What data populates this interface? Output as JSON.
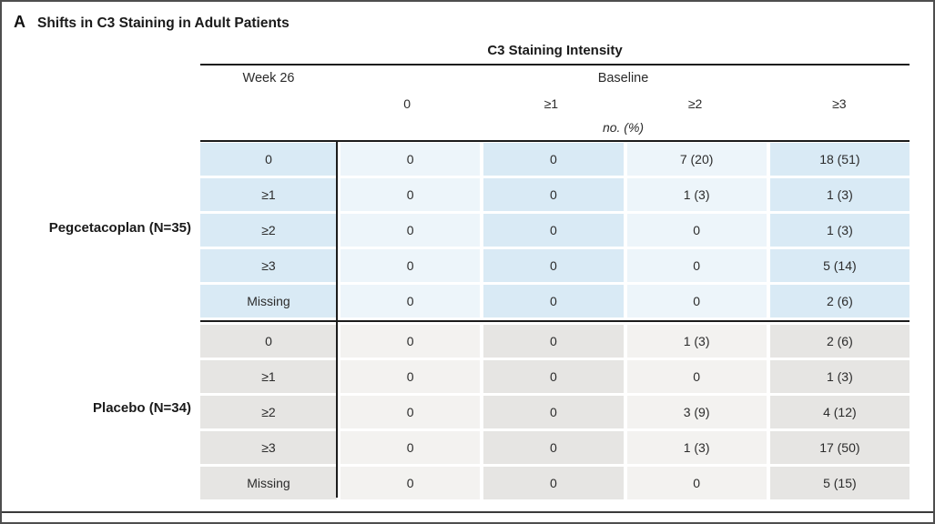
{
  "panel": {
    "letter": "A",
    "title": "Shifts in C3 Staining in Adult Patients"
  },
  "table": {
    "header": "C3 Staining Intensity",
    "row_axis_label": "Week 26",
    "col_axis_label": "Baseline",
    "col_headers": [
      "0",
      "≥1",
      "≥2",
      "≥3"
    ],
    "unit_note": "no. (%)",
    "groups": [
      {
        "label": "Pegcetacoplan (N=35)",
        "rows": [
          {
            "label": "0",
            "values": [
              "0",
              "0",
              "7 (20)",
              "18 (51)"
            ]
          },
          {
            "label": "≥1",
            "values": [
              "0",
              "0",
              "1 (3)",
              "1 (3)"
            ]
          },
          {
            "label": "≥2",
            "values": [
              "0",
              "0",
              "0",
              "1 (3)"
            ]
          },
          {
            "label": "≥3",
            "values": [
              "0",
              "0",
              "0",
              "5 (14)"
            ]
          },
          {
            "label": "Missing",
            "values": [
              "0",
              "0",
              "0",
              "2 (6)"
            ]
          }
        ]
      },
      {
        "label": "Placebo (N=34)",
        "rows": [
          {
            "label": "0",
            "values": [
              "0",
              "0",
              "1 (3)",
              "2 (6)"
            ]
          },
          {
            "label": "≥1",
            "values": [
              "0",
              "0",
              "0",
              "1 (3)"
            ]
          },
          {
            "label": "≥2",
            "values": [
              "0",
              "0",
              "3 (9)",
              "4 (12)"
            ]
          },
          {
            "label": "≥3",
            "values": [
              "0",
              "0",
              "1 (3)",
              "17 (50)"
            ]
          },
          {
            "label": "Missing",
            "values": [
              "0",
              "0",
              "0",
              "5 (15)"
            ]
          }
        ]
      }
    ],
    "colors": {
      "pegcetacoplan_dark": "#d9eaf5",
      "pegcetacoplan_light": "#edf5fa",
      "placebo_dark": "#e6e5e3",
      "placebo_light": "#f3f2f0",
      "line": "#1c1c1c"
    }
  }
}
